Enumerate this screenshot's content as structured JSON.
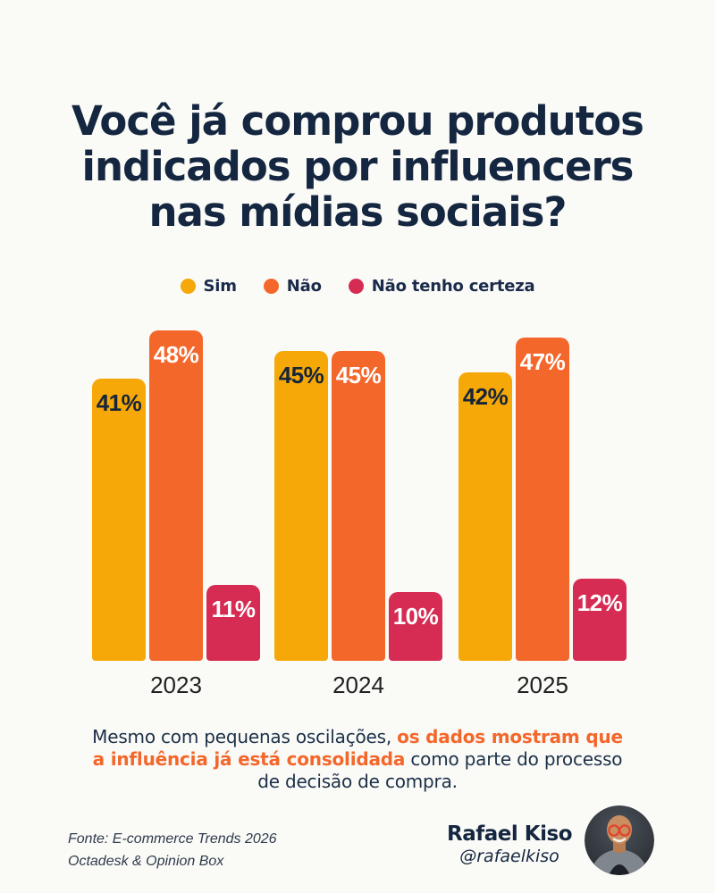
{
  "title": {
    "lines": [
      "Você já comprou produtos",
      "indicados por influencers",
      "nas mídias sociais?"
    ]
  },
  "chart_data": {
    "type": "bar",
    "categories": [
      "2023",
      "2024",
      "2025"
    ],
    "series": [
      {
        "name": "Sim",
        "color": "#F5A807",
        "label_color": "#16253B",
        "values": [
          41,
          45,
          42
        ]
      },
      {
        "name": "Não",
        "color": "#F4672B",
        "label_color": "#FFFFFF",
        "values": [
          48,
          45,
          47
        ]
      },
      {
        "name": "Não tenho certeza",
        "color": "#D62B53",
        "label_color": "#FFFFFF",
        "values": [
          11,
          10,
          12
        ]
      }
    ],
    "value_suffix": "%",
    "ylim": [
      0,
      49
    ],
    "grid": false,
    "legend_position": "top",
    "title": "Você já comprou produtos indicados por influencers nas mídias sociais?",
    "xlabel": "",
    "ylabel": ""
  },
  "insight": {
    "segments": [
      {
        "text": "Mesmo com pequenas oscilações, ",
        "highlight": false
      },
      {
        "text": "os dados mostram que a influência já está consolidada",
        "highlight": true
      },
      {
        "text": " como parte do processo de decisão de compra.",
        "highlight": false
      }
    ]
  },
  "footer": {
    "source_lines": [
      "Fonte: E-commerce Trends 2026",
      "Octadesk & Opinion Box"
    ],
    "author": {
      "name": "Rafael Kiso",
      "handle": "@rafaelkiso"
    }
  },
  "colors": {
    "background": "#FAFAF7",
    "title": "#152740",
    "highlight": "#F4672B",
    "body_text": "#1C3048"
  }
}
